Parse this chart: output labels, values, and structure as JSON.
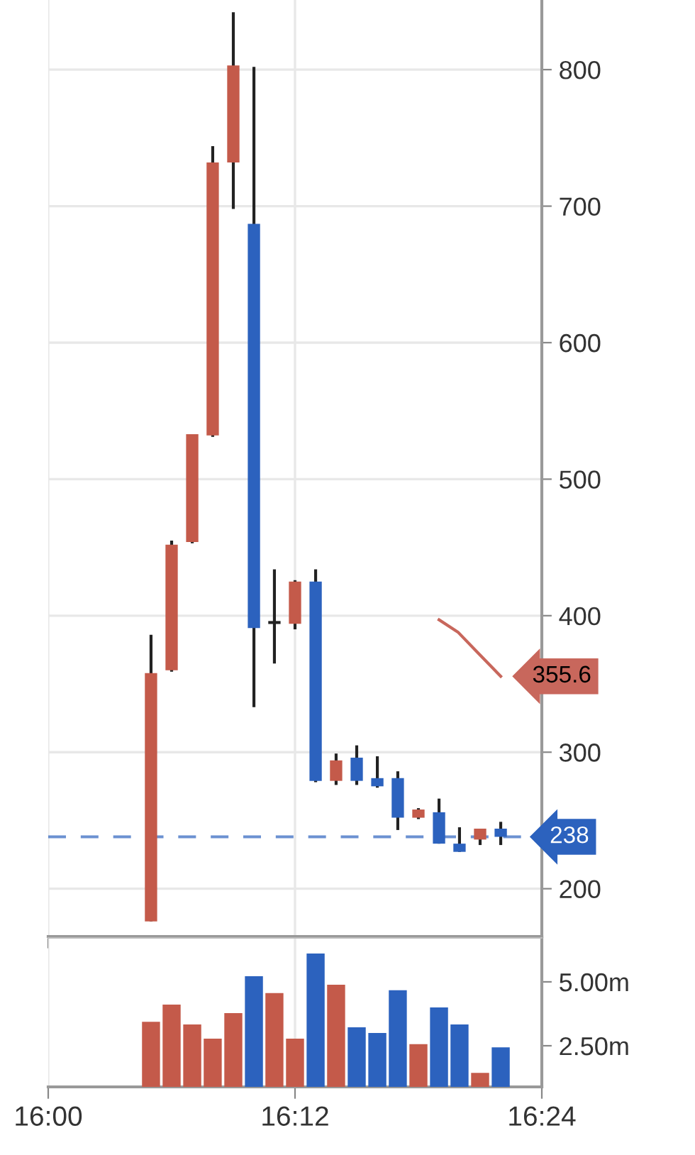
{
  "chart_data": [
    {
      "type": "candlestick",
      "x": [
        16.0833,
        16.1,
        16.1167,
        16.1333,
        16.15,
        16.1667,
        16.1833,
        16.2,
        16.2167,
        16.2333,
        16.25,
        16.2667,
        16.2833,
        16.3,
        16.3167,
        16.3333,
        16.35,
        16.3667
      ],
      "ohlc": [
        [
          176,
          386,
          176,
          358
        ],
        [
          360,
          455,
          359,
          452
        ],
        [
          454,
          533,
          453,
          533
        ],
        [
          532,
          744,
          531,
          732
        ],
        [
          732,
          842,
          698,
          803
        ],
        [
          687,
          802,
          333,
          391
        ],
        [
          395,
          434,
          365,
          395
        ],
        [
          394,
          426,
          390,
          425
        ],
        [
          425,
          434,
          278,
          279
        ],
        [
          279,
          299,
          276,
          294
        ],
        [
          296,
          305,
          276,
          279
        ],
        [
          281,
          297,
          274,
          275
        ],
        [
          281,
          286,
          243,
          252
        ],
        [
          252,
          259,
          251,
          258
        ],
        [
          256,
          266,
          233,
          233
        ],
        [
          233,
          245,
          227,
          227
        ],
        [
          236,
          244,
          232,
          244
        ],
        [
          244,
          249,
          232,
          238
        ]
      ],
      "colors": [
        "#c45a4a",
        "#c45a4a",
        "#c45a4a",
        "#c45a4a",
        "#c45a4a",
        "#2c62be",
        "#222222",
        "#c45a4a",
        "#2c62be",
        "#c45a4a",
        "#2c62be",
        "#2c62be",
        "#2c62be",
        "#c45a4a",
        "#2c62be",
        "#2c62be",
        "#c45a4a",
        "#2c62be"
      ],
      "series": [
        {
          "type": "line",
          "color": "#c8675c",
          "x": [
            16.3167,
            16.332,
            16.348,
            16.3667
          ],
          "values": [
            397,
            388,
            373,
            355.6
          ]
        }
      ],
      "annotations": [
        {
          "text": "355.6",
          "x": 16.3667,
          "y": 355.6
        }
      ],
      "ref_lines": [
        {
          "axis": "y",
          "value": 238,
          "label": "238",
          "color": "#2c62be",
          "line_style": "dashed"
        }
      ],
      "xlim": [
        16.0,
        16.4
      ],
      "xticks": [
        {
          "value": 16.0,
          "label": null
        },
        {
          "value": 16.2,
          "label": null
        },
        {
          "value": 16.4,
          "label": null
        }
      ],
      "ylim": [
        165,
        851
      ],
      "yticks": [
        200,
        300,
        400,
        500,
        600,
        700,
        800
      ],
      "grid": true,
      "tick_labels": "y"
    },
    {
      "type": "bar",
      "x": [
        16.0833,
        16.1,
        16.1167,
        16.1333,
        16.15,
        16.1667,
        16.1833,
        16.2,
        16.2167,
        16.2333,
        16.25,
        16.2667,
        16.2833,
        16.3,
        16.3167,
        16.3333,
        16.35,
        16.3667
      ],
      "values": [
        3.44,
        4.11,
        3.33,
        2.78,
        3.78,
        5.22,
        4.56,
        2.78,
        6.11,
        4.89,
        3.22,
        3.0,
        4.67,
        2.56,
        4.0,
        3.33,
        1.44,
        2.44
      ],
      "colors": [
        "#c45a4a",
        "#c45a4a",
        "#c45a4a",
        "#c45a4a",
        "#c45a4a",
        "#2c62be",
        "#c45a4a",
        "#c45a4a",
        "#2c62be",
        "#c45a4a",
        "#2c62be",
        "#2c62be",
        "#2c62be",
        "#c45a4a",
        "#2c62be",
        "#2c62be",
        "#c45a4a",
        "#2c62be"
      ],
      "xlim": [
        16.0,
        16.4
      ],
      "xticks": [
        {
          "value": 16.0,
          "label": "16:00"
        },
        {
          "value": 16.2,
          "label": "16:12"
        },
        {
          "value": 16.4,
          "label": "16:24"
        }
      ],
      "ylim": [
        0.89,
        6.72
      ],
      "yticks": [
        {
          "value": 2.5,
          "label": "2.50m"
        },
        {
          "value": 5,
          "label": "5.00m"
        }
      ],
      "grid": "x"
    }
  ]
}
